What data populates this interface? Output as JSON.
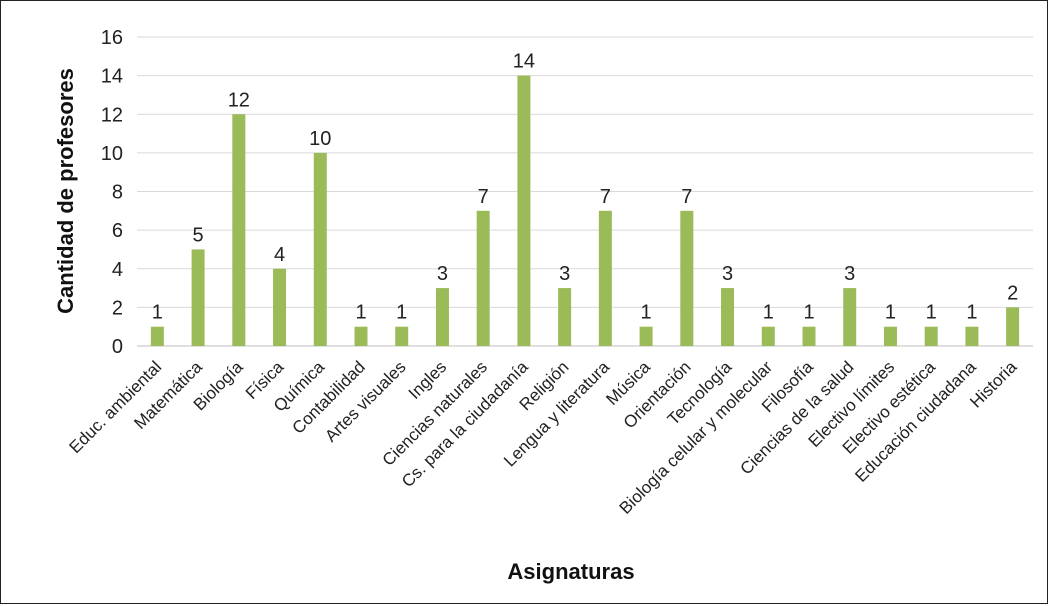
{
  "chart_data": {
    "type": "bar",
    "xlabel": "Asignaturas",
    "ylabel": "Cantidad de profesores",
    "ylim": [
      0,
      16
    ],
    "yticks": [
      0,
      2,
      4,
      6,
      8,
      10,
      12,
      14,
      16
    ],
    "grid": "horizontal",
    "legend": "none",
    "bar_color": "#9bbb59",
    "categories": [
      "Educ. ambiental",
      "Matemática",
      "Biología",
      "Física",
      "Química",
      "Contabilidad",
      "Artes visuales",
      "Ingles",
      "Ciencias naturales",
      "Cs. para la ciudadanía",
      "Religión",
      "Lengua y literatura",
      "Música",
      "Orientación",
      "Tecnología",
      "Biología celular y molecular",
      "Filosofía",
      "Ciencias de la salud",
      "Electivo límites",
      "Electivo estética",
      "Educación ciudadana",
      "Historia"
    ],
    "values": [
      1,
      5,
      12,
      4,
      10,
      1,
      1,
      3,
      7,
      14,
      3,
      7,
      1,
      7,
      3,
      1,
      1,
      3,
      1,
      1,
      1,
      2
    ]
  }
}
